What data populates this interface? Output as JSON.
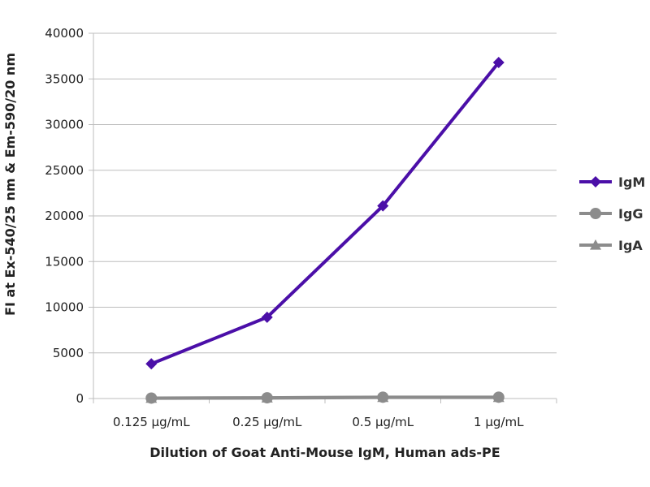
{
  "chart_data": {
    "type": "line",
    "categories": [
      "0.125 µg/mL",
      "0.25 µg/mL",
      "0.5 µg/mL",
      "1 µg/mL"
    ],
    "series": [
      {
        "name": "IgM",
        "values": [
          3800,
          8900,
          21100,
          36800
        ],
        "color": "#4b0fa8",
        "marker": "diamond"
      },
      {
        "name": "IgG",
        "values": [
          50,
          80,
          150,
          150
        ],
        "color": "#8c8c8c",
        "marker": "circle"
      },
      {
        "name": "IgA",
        "values": [
          30,
          60,
          120,
          120
        ],
        "color": "#8c8c8c",
        "marker": "triangle"
      }
    ],
    "xlabel": "Dilution of Goat Anti-Mouse IgM, Human ads-PE",
    "ylabel": "FI at Ex-540/25 nm & Em-590/20 nm",
    "ylim": [
      0,
      40000
    ],
    "yticks": [
      "0",
      "5000",
      "10000",
      "15000",
      "20000",
      "25000",
      "30000",
      "35000",
      "40000"
    ],
    "grid": true,
    "legend_position": "right"
  }
}
